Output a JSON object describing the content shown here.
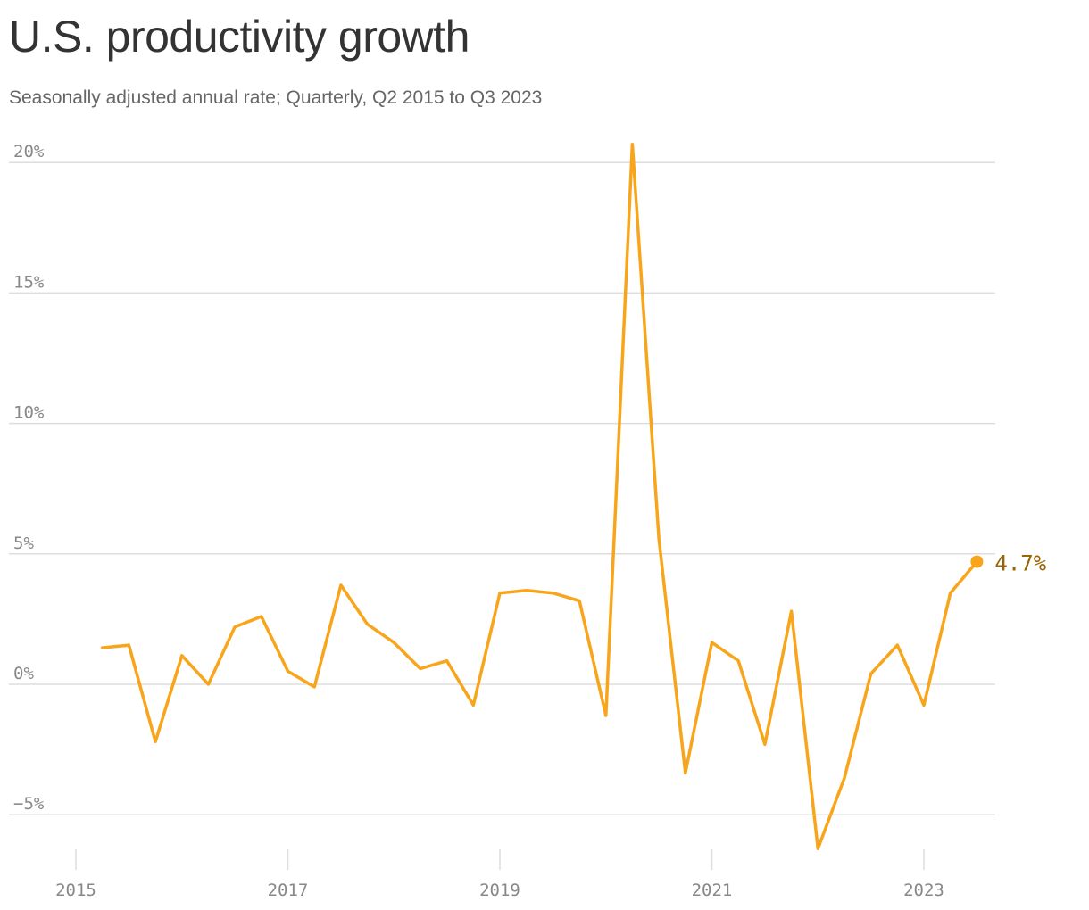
{
  "title": "U.S. productivity growth",
  "subtitle": "Seasonally adjusted annual rate; Quarterly, Q2 2015 to Q3 2023",
  "colors": {
    "line": "#f8a51c",
    "end_label": "#9a6400",
    "grid": "#dddddd",
    "tick_text": "#888888"
  },
  "chart_data": {
    "type": "line",
    "title": "U.S. productivity growth",
    "subtitle": "Seasonally adjusted annual rate; Quarterly, Q2 2015 to Q3 2023",
    "xlabel": "",
    "ylabel": "",
    "ylim": [
      -6.5,
      21
    ],
    "grid": "horizontal",
    "y_ticks": [
      {
        "value": -5,
        "label": "−5%"
      },
      {
        "value": 0,
        "label": "0%"
      },
      {
        "value": 5,
        "label": "5%"
      },
      {
        "value": 10,
        "label": "10%"
      },
      {
        "value": 15,
        "label": "15%"
      },
      {
        "value": 20,
        "label": "20%"
      }
    ],
    "x_ticks": [
      "2015",
      "2017",
      "2019",
      "2021",
      "2023"
    ],
    "x": [
      "Q2 2015",
      "Q3 2015",
      "Q4 2015",
      "Q1 2016",
      "Q2 2016",
      "Q3 2016",
      "Q4 2016",
      "Q1 2017",
      "Q2 2017",
      "Q3 2017",
      "Q4 2017",
      "Q1 2018",
      "Q2 2018",
      "Q3 2018",
      "Q4 2018",
      "Q1 2019",
      "Q2 2019",
      "Q3 2019",
      "Q4 2019",
      "Q1 2020",
      "Q2 2020",
      "Q3 2020",
      "Q4 2020",
      "Q1 2021",
      "Q2 2021",
      "Q3 2021",
      "Q4 2021",
      "Q1 2022",
      "Q2 2022",
      "Q3 2022",
      "Q4 2022",
      "Q1 2023",
      "Q2 2023",
      "Q3 2023"
    ],
    "series": [
      {
        "values": [
          1.4,
          1.5,
          -2.2,
          1.1,
          0.0,
          2.2,
          2.6,
          0.5,
          -0.1,
          3.8,
          2.3,
          1.6,
          0.6,
          0.9,
          -0.8,
          3.5,
          3.6,
          3.5,
          3.2,
          -1.2,
          20.7,
          5.6,
          -3.4,
          1.6,
          0.9,
          -2.3,
          2.8,
          -6.3,
          -3.6,
          0.4,
          1.5,
          -0.8,
          3.5,
          4.7
        ]
      }
    ],
    "end_label": "4.7%"
  }
}
